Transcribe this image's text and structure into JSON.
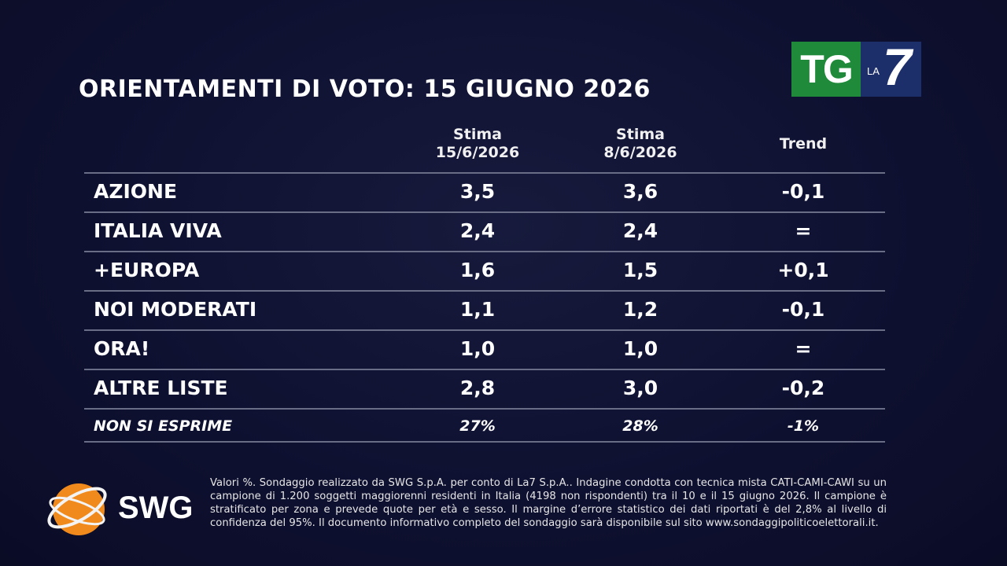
{
  "header": {
    "title": "ORIENTAMENTI DI VOTO: 15 GIUGNO 2026",
    "logo": {
      "tg": "TG",
      "la": "LA",
      "seven": "7"
    }
  },
  "table": {
    "columns": [
      [
        "Stima",
        "15/6/2026"
      ],
      [
        "Stima",
        "8/6/2026"
      ],
      [
        "Trend"
      ]
    ],
    "rows": [
      [
        "AZIONE",
        "3,5",
        "3,6",
        "-0,1"
      ],
      [
        "ITALIA VIVA",
        "2,4",
        "2,4",
        "="
      ],
      [
        "+EUROPA",
        "1,6",
        "1,5",
        "+0,1"
      ],
      [
        "NOI MODERATI",
        "1,1",
        "1,2",
        "-0,1"
      ],
      [
        "ORA!",
        "1,0",
        "1,0",
        "="
      ],
      [
        "ALTRE LISTE",
        "2,8",
        "3,0",
        "-0,2"
      ]
    ],
    "footer_row": [
      "NON SI ESPRIME",
      "27%",
      "28%",
      "-1%"
    ]
  },
  "footer": {
    "brand": "SWG",
    "note": "Valori %. Sondaggio realizzato da SWG S.p.A. per conto di La7 S.p.A.. Indagine condotta con tecnica mista CATI-CAMI-CAWI su un campione di 1.200 soggetti maggiorenni residenti in Italia (4198 non rispondenti) tra il 10 e il 15 giugno 2026. Il campione è stratificato per zona e prevede quote per età e sesso. Il margine d’errore statistico dei dati riportati è del 2,8% al livello di confidenza del 95%. Il documento informativo completo del sondaggio sarà disponibile sul sito www.sondaggipoliticoelettorali.it."
  }
}
